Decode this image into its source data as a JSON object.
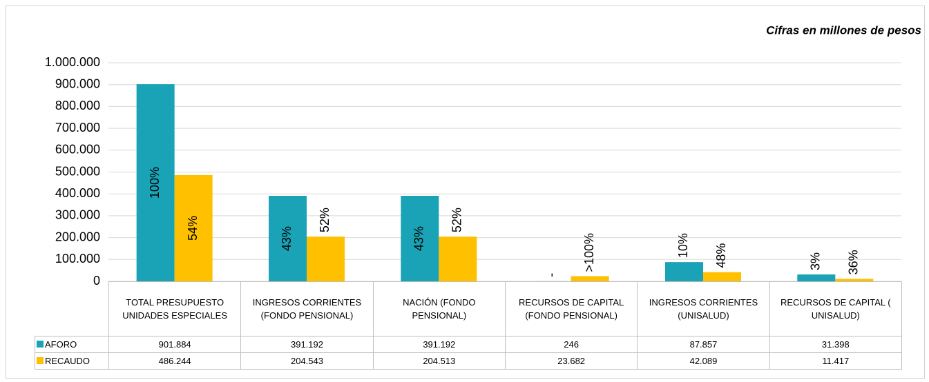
{
  "chart_data": {
    "type": "bar",
    "note": "Cifras en millones de pesos",
    "categories": [
      "TOTAL PRESUPUESTO UNIDADES ESPECIALES",
      "INGRESOS CORRIENTES (FONDO PENSIONAL)",
      "NACIÓN (FONDO PENSIONAL)",
      "RECURSOS DE CAPITAL (FONDO PENSIONAL)",
      "INGRESOS CORRIENTES (UNISALUD)",
      "RECURSOS DE CAPITAL ( UNISALUD)"
    ],
    "series": [
      {
        "name": "AFORO",
        "color": "#1aa3b6",
        "values": [
          901884,
          391192,
          391192,
          246,
          87857,
          31398
        ],
        "value_labels": [
          "901.884",
          "391.192",
          "391.192",
          "246",
          "87.857",
          "31.398"
        ],
        "percent_labels": [
          "100%",
          "43%",
          "43%",
          "-",
          "10%",
          "3%"
        ]
      },
      {
        "name": "RECAUDO",
        "color": "#ffc000",
        "values": [
          486244,
          204543,
          204513,
          23682,
          42089,
          11417
        ],
        "value_labels": [
          "486.244",
          "204.543",
          "204.513",
          "23.682",
          "42.089",
          "11.417"
        ],
        "percent_labels": [
          "54%",
          "52%",
          "52%",
          ">100%",
          "48%",
          "36%"
        ]
      }
    ],
    "ylim": [
      0,
      1000000
    ],
    "yticks": [
      0,
      {
        "value": 100000,
        "label": "100.000"
      },
      {
        "value": 200000,
        "label": "200.000"
      },
      {
        "value": 300000,
        "label": "300.000"
      },
      {
        "value": 400000,
        "label": "400.000"
      },
      {
        "value": 500000,
        "label": "500.000"
      },
      {
        "value": 600000,
        "label": "600.000"
      },
      {
        "value": 700000,
        "label": "700.000"
      },
      {
        "value": 800000,
        "label": "800.000"
      },
      {
        "value": 900000,
        "label": "900.000"
      },
      {
        "value": 1000000,
        "label": "1.000.000"
      }
    ],
    "grid": true
  }
}
